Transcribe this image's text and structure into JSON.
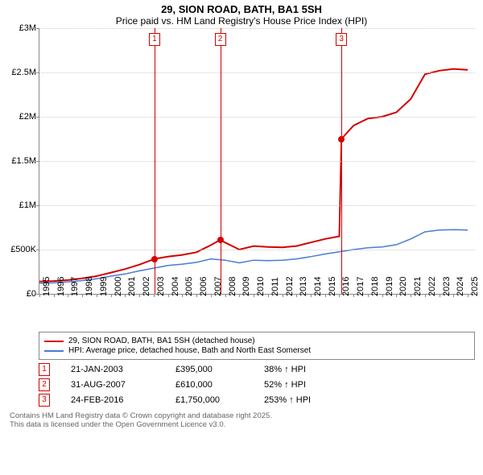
{
  "title": {
    "main": "29, SION ROAD, BATH, BA1 5SH",
    "sub": "Price paid vs. HM Land Registry's House Price Index (HPI)"
  },
  "chart": {
    "type": "line",
    "background_color": "#ffffff",
    "grid_color": "#cccccc",
    "axis_color": "#888888",
    "ylim": [
      0,
      3000000
    ],
    "ytick_step": 500000,
    "y_labels": [
      "£0",
      "£500K",
      "£1M",
      "£1.5M",
      "£2M",
      "£2.5M",
      "£3M"
    ],
    "y_values": [
      0,
      500000,
      1000000,
      1500000,
      2000000,
      2500000,
      3000000
    ],
    "xlim": [
      1995,
      2025.5
    ],
    "x_ticks": [
      1995,
      1996,
      1997,
      1998,
      1999,
      2000,
      2001,
      2002,
      2003,
      2004,
      2005,
      2006,
      2007,
      2008,
      2009,
      2010,
      2011,
      2012,
      2013,
      2014,
      2015,
      2016,
      2017,
      2018,
      2019,
      2020,
      2021,
      2022,
      2023,
      2024,
      2025
    ],
    "series": [
      {
        "name": "29, SION ROAD, BATH, BA1 5SH (detached house)",
        "color": "#d40000",
        "line_width": 2,
        "points": [
          [
            1995,
            140000
          ],
          [
            1996,
            145000
          ],
          [
            1997,
            155000
          ],
          [
            1998,
            175000
          ],
          [
            1999,
            200000
          ],
          [
            2000,
            240000
          ],
          [
            2001,
            280000
          ],
          [
            2002,
            330000
          ],
          [
            2003.06,
            395000
          ],
          [
            2004,
            420000
          ],
          [
            2005,
            440000
          ],
          [
            2006,
            470000
          ],
          [
            2007,
            550000
          ],
          [
            2007.66,
            610000
          ],
          [
            2008,
            580000
          ],
          [
            2009,
            500000
          ],
          [
            2010,
            540000
          ],
          [
            2011,
            530000
          ],
          [
            2012,
            525000
          ],
          [
            2013,
            540000
          ],
          [
            2014,
            580000
          ],
          [
            2015,
            620000
          ],
          [
            2016.0,
            650000
          ],
          [
            2016.15,
            1750000
          ],
          [
            2017,
            1900000
          ],
          [
            2018,
            1980000
          ],
          [
            2019,
            2000000
          ],
          [
            2020,
            2050000
          ],
          [
            2021,
            2200000
          ],
          [
            2022,
            2480000
          ],
          [
            2023,
            2520000
          ],
          [
            2024,
            2540000
          ],
          [
            2025,
            2530000
          ]
        ]
      },
      {
        "name": "HPI: Average price, detached house, Bath and North East Somerset",
        "color": "#4a7bd4",
        "line_width": 1.5,
        "points": [
          [
            1995,
            120000
          ],
          [
            1996,
            125000
          ],
          [
            1997,
            135000
          ],
          [
            1998,
            150000
          ],
          [
            1999,
            170000
          ],
          [
            2000,
            200000
          ],
          [
            2001,
            225000
          ],
          [
            2002,
            260000
          ],
          [
            2003,
            290000
          ],
          [
            2004,
            320000
          ],
          [
            2005,
            335000
          ],
          [
            2006,
            355000
          ],
          [
            2007,
            395000
          ],
          [
            2008,
            380000
          ],
          [
            2009,
            350000
          ],
          [
            2010,
            380000
          ],
          [
            2011,
            375000
          ],
          [
            2012,
            380000
          ],
          [
            2013,
            395000
          ],
          [
            2014,
            420000
          ],
          [
            2015,
            450000
          ],
          [
            2016,
            475000
          ],
          [
            2017,
            500000
          ],
          [
            2018,
            520000
          ],
          [
            2019,
            530000
          ],
          [
            2020,
            555000
          ],
          [
            2021,
            620000
          ],
          [
            2022,
            700000
          ],
          [
            2023,
            720000
          ],
          [
            2024,
            725000
          ],
          [
            2025,
            720000
          ]
        ]
      }
    ],
    "sale_markers": [
      {
        "num": "1",
        "year": 2003.06,
        "value": 395000,
        "color": "#d40000"
      },
      {
        "num": "2",
        "year": 2007.66,
        "value": 610000,
        "color": "#d40000"
      },
      {
        "num": "3",
        "year": 2016.15,
        "value": 1750000,
        "color": "#d40000"
      }
    ]
  },
  "legend": {
    "items": [
      {
        "color": "#d40000",
        "label": "29, SION ROAD, BATH, BA1 5SH (detached house)"
      },
      {
        "color": "#4a7bd4",
        "label": "HPI: Average price, detached house, Bath and North East Somerset"
      }
    ]
  },
  "sales": [
    {
      "num": "1",
      "color": "#d40000",
      "date": "21-JAN-2003",
      "price": "£395,000",
      "pct": "38% ↑ HPI"
    },
    {
      "num": "2",
      "color": "#d40000",
      "date": "31-AUG-2007",
      "price": "£610,000",
      "pct": "52% ↑ HPI"
    },
    {
      "num": "3",
      "color": "#d40000",
      "date": "24-FEB-2016",
      "price": "£1,750,000",
      "pct": "253% ↑ HPI"
    }
  ],
  "footer": {
    "line1": "Contains HM Land Registry data © Crown copyright and database right 2025.",
    "line2": "This data is licensed under the Open Government Licence v3.0."
  }
}
